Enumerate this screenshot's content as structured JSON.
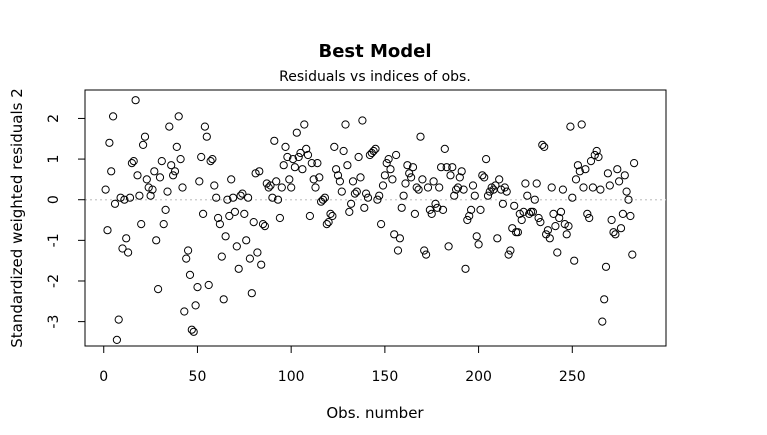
{
  "chart_data": {
    "type": "scatter",
    "title": "Best Model",
    "subtitle": "Residuals vs indices of obs.",
    "xlabel": "Obs. number",
    "ylabel": "Standardized weighted residuals 2",
    "xlim": [
      -10,
      300
    ],
    "ylim": [
      -3.6,
      2.7
    ],
    "xticks": [
      0,
      50,
      100,
      150,
      200,
      250
    ],
    "yticks": [
      -3,
      -2,
      -1,
      0,
      1,
      2
    ],
    "reference_line": 0,
    "grid": false,
    "marker": "open-circle",
    "colors": {
      "points": "#000000",
      "reference_line": "#c8c8c8"
    },
    "points": [
      [
        1,
        0.25
      ],
      [
        2,
        -0.75
      ],
      [
        3,
        1.4
      ],
      [
        4,
        0.7
      ],
      [
        5,
        2.05
      ],
      [
        6,
        -0.1
      ],
      [
        7,
        -3.45
      ],
      [
        8,
        -2.95
      ],
      [
        9,
        0.05
      ],
      [
        10,
        -1.2
      ],
      [
        11,
        0.0
      ],
      [
        12,
        -0.95
      ],
      [
        13,
        -1.3
      ],
      [
        14,
        0.05
      ],
      [
        15,
        0.9
      ],
      [
        16,
        0.95
      ],
      [
        17,
        2.45
      ],
      [
        18,
        0.6
      ],
      [
        19,
        0.1
      ],
      [
        20,
        -0.6
      ],
      [
        21,
        1.35
      ],
      [
        22,
        1.55
      ],
      [
        23,
        0.5
      ],
      [
        24,
        0.3
      ],
      [
        25,
        0.1
      ],
      [
        26,
        0.25
      ],
      [
        27,
        0.7
      ],
      [
        28,
        -1.0
      ],
      [
        29,
        -2.2
      ],
      [
        30,
        0.55
      ],
      [
        31,
        0.95
      ],
      [
        32,
        -0.6
      ],
      [
        33,
        -0.25
      ],
      [
        34,
        0.2
      ],
      [
        35,
        1.8
      ],
      [
        36,
        0.85
      ],
      [
        37,
        0.6
      ],
      [
        38,
        0.7
      ],
      [
        39,
        1.3
      ],
      [
        40,
        2.05
      ],
      [
        41,
        1.0
      ],
      [
        42,
        0.3
      ],
      [
        43,
        -2.75
      ],
      [
        44,
        -1.45
      ],
      [
        45,
        -1.25
      ],
      [
        46,
        -1.85
      ],
      [
        47,
        -3.2
      ],
      [
        48,
        -3.25
      ],
      [
        49,
        -2.6
      ],
      [
        50,
        -2.15
      ],
      [
        51,
        0.45
      ],
      [
        52,
        1.05
      ],
      [
        53,
        -0.35
      ],
      [
        54,
        1.8
      ],
      [
        55,
        1.55
      ],
      [
        56,
        -2.1
      ],
      [
        57,
        0.95
      ],
      [
        58,
        1.0
      ],
      [
        59,
        0.35
      ],
      [
        60,
        0.05
      ],
      [
        61,
        -0.45
      ],
      [
        62,
        -0.6
      ],
      [
        63,
        -1.4
      ],
      [
        64,
        -2.45
      ],
      [
        65,
        -0.9
      ],
      [
        66,
        0.0
      ],
      [
        67,
        -0.4
      ],
      [
        68,
        0.5
      ],
      [
        69,
        0.05
      ],
      [
        70,
        -0.3
      ],
      [
        71,
        -1.15
      ],
      [
        72,
        -1.7
      ],
      [
        73,
        0.1
      ],
      [
        74,
        0.15
      ],
      [
        75,
        -0.35
      ],
      [
        76,
        -1.0
      ],
      [
        77,
        0.05
      ],
      [
        78,
        -1.45
      ],
      [
        79,
        -2.3
      ],
      [
        80,
        -0.55
      ],
      [
        81,
        0.65
      ],
      [
        82,
        -1.3
      ],
      [
        83,
        0.7
      ],
      [
        84,
        -1.6
      ],
      [
        85,
        -0.6
      ],
      [
        86,
        -0.65
      ],
      [
        87,
        0.4
      ],
      [
        88,
        0.3
      ],
      [
        89,
        0.35
      ],
      [
        90,
        0.05
      ],
      [
        91,
        1.45
      ],
      [
        92,
        0.45
      ],
      [
        93,
        0.0
      ],
      [
        94,
        -0.45
      ],
      [
        95,
        0.3
      ],
      [
        96,
        0.85
      ],
      [
        97,
        1.3
      ],
      [
        98,
        1.05
      ],
      [
        99,
        0.5
      ],
      [
        100,
        0.3
      ],
      [
        101,
        1.0
      ],
      [
        102,
        0.8
      ],
      [
        103,
        1.65
      ],
      [
        104,
        1.05
      ],
      [
        105,
        1.15
      ],
      [
        106,
        0.75
      ],
      [
        107,
        1.85
      ],
      [
        108,
        1.25
      ],
      [
        109,
        1.1
      ],
      [
        110,
        -0.4
      ],
      [
        111,
        0.9
      ],
      [
        112,
        0.5
      ],
      [
        113,
        0.3
      ],
      [
        114,
        0.9
      ],
      [
        115,
        0.55
      ],
      [
        116,
        -0.05
      ],
      [
        117,
        0.0
      ],
      [
        118,
        0.05
      ],
      [
        119,
        -0.6
      ],
      [
        120,
        -0.55
      ],
      [
        121,
        -0.35
      ],
      [
        122,
        -0.4
      ],
      [
        123,
        1.3
      ],
      [
        124,
        0.75
      ],
      [
        125,
        0.6
      ],
      [
        126,
        0.45
      ],
      [
        127,
        0.2
      ],
      [
        128,
        1.2
      ],
      [
        129,
        1.85
      ],
      [
        130,
        0.85
      ],
      [
        131,
        -0.3
      ],
      [
        132,
        -0.1
      ],
      [
        133,
        0.45
      ],
      [
        134,
        0.15
      ],
      [
        135,
        0.2
      ],
      [
        136,
        1.05
      ],
      [
        137,
        0.55
      ],
      [
        138,
        1.95
      ],
      [
        139,
        -0.2
      ],
      [
        140,
        0.15
      ],
      [
        141,
        0.05
      ],
      [
        142,
        1.1
      ],
      [
        143,
        1.15
      ],
      [
        144,
        1.2
      ],
      [
        145,
        1.25
      ],
      [
        146,
        0.0
      ],
      [
        147,
        0.1
      ],
      [
        148,
        -0.6
      ],
      [
        149,
        0.35
      ],
      [
        150,
        0.6
      ],
      [
        151,
        0.9
      ],
      [
        152,
        1.0
      ],
      [
        153,
        0.75
      ],
      [
        154,
        0.5
      ],
      [
        155,
        -0.85
      ],
      [
        156,
        1.1
      ],
      [
        157,
        -1.25
      ],
      [
        158,
        -0.95
      ],
      [
        159,
        -0.2
      ],
      [
        160,
        0.1
      ],
      [
        161,
        0.4
      ],
      [
        162,
        0.85
      ],
      [
        163,
        0.65
      ],
      [
        164,
        0.55
      ],
      [
        165,
        0.8
      ],
      [
        166,
        -0.35
      ],
      [
        167,
        0.3
      ],
      [
        168,
        0.25
      ],
      [
        169,
        1.55
      ],
      [
        170,
        0.5
      ],
      [
        171,
        -1.25
      ],
      [
        172,
        -1.35
      ],
      [
        173,
        0.3
      ],
      [
        174,
        -0.25
      ],
      [
        175,
        -0.35
      ],
      [
        176,
        0.45
      ],
      [
        177,
        -0.1
      ],
      [
        178,
        -0.2
      ],
      [
        179,
        0.3
      ],
      [
        180,
        0.8
      ],
      [
        181,
        -0.25
      ],
      [
        182,
        1.25
      ],
      [
        183,
        0.8
      ],
      [
        184,
        -1.15
      ],
      [
        185,
        0.6
      ],
      [
        186,
        0.8
      ],
      [
        187,
        0.1
      ],
      [
        188,
        0.25
      ],
      [
        189,
        0.3
      ],
      [
        190,
        0.55
      ],
      [
        191,
        0.7
      ],
      [
        192,
        0.25
      ],
      [
        193,
        -1.7
      ],
      [
        194,
        -0.5
      ],
      [
        195,
        -0.4
      ],
      [
        196,
        -0.25
      ],
      [
        197,
        0.35
      ],
      [
        198,
        0.1
      ],
      [
        199,
        -0.9
      ],
      [
        200,
        -1.1
      ],
      [
        201,
        -0.25
      ],
      [
        202,
        0.6
      ],
      [
        203,
        0.55
      ],
      [
        204,
        1.0
      ],
      [
        205,
        0.1
      ],
      [
        206,
        0.2
      ],
      [
        207,
        0.3
      ],
      [
        208,
        0.25
      ],
      [
        209,
        0.35
      ],
      [
        210,
        -0.95
      ],
      [
        211,
        0.5
      ],
      [
        212,
        0.25
      ],
      [
        213,
        -0.1
      ],
      [
        214,
        0.3
      ],
      [
        215,
        0.2
      ],
      [
        216,
        -1.35
      ],
      [
        217,
        -1.25
      ],
      [
        218,
        -0.7
      ],
      [
        219,
        -0.15
      ],
      [
        220,
        -0.8
      ],
      [
        221,
        -0.8
      ],
      [
        222,
        -0.35
      ],
      [
        223,
        -0.5
      ],
      [
        224,
        -0.3
      ],
      [
        225,
        0.4
      ],
      [
        226,
        0.1
      ],
      [
        227,
        -0.35
      ],
      [
        228,
        -0.3
      ],
      [
        229,
        -0.3
      ],
      [
        230,
        0.0
      ],
      [
        231,
        0.4
      ],
      [
        232,
        -0.45
      ],
      [
        233,
        -0.55
      ],
      [
        234,
        1.35
      ],
      [
        235,
        1.3
      ],
      [
        236,
        -0.85
      ],
      [
        237,
        -0.75
      ],
      [
        238,
        -0.95
      ],
      [
        239,
        0.3
      ],
      [
        240,
        -0.35
      ],
      [
        241,
        -0.65
      ],
      [
        242,
        -1.3
      ],
      [
        243,
        -0.45
      ],
      [
        244,
        -0.3
      ],
      [
        245,
        0.25
      ],
      [
        246,
        -0.6
      ],
      [
        247,
        -0.85
      ],
      [
        248,
        -0.65
      ],
      [
        249,
        1.8
      ],
      [
        250,
        0.05
      ],
      [
        251,
        -1.5
      ],
      [
        252,
        0.5
      ],
      [
        253,
        0.85
      ],
      [
        254,
        0.7
      ],
      [
        255,
        1.85
      ],
      [
        256,
        0.3
      ],
      [
        257,
        0.75
      ],
      [
        258,
        -0.35
      ],
      [
        259,
        -0.45
      ],
      [
        260,
        0.95
      ],
      [
        261,
        0.3
      ],
      [
        262,
        1.1
      ],
      [
        263,
        1.2
      ],
      [
        264,
        1.05
      ],
      [
        265,
        0.25
      ],
      [
        266,
        -3.0
      ],
      [
        267,
        -2.45
      ],
      [
        268,
        -1.65
      ],
      [
        269,
        0.65
      ],
      [
        270,
        0.35
      ],
      [
        271,
        -0.5
      ],
      [
        272,
        -0.8
      ],
      [
        273,
        -0.85
      ],
      [
        274,
        0.75
      ],
      [
        275,
        0.45
      ],
      [
        276,
        -0.7
      ],
      [
        277,
        -0.35
      ],
      [
        278,
        0.6
      ],
      [
        279,
        0.2
      ],
      [
        280,
        0.0
      ],
      [
        281,
        -0.4
      ],
      [
        282,
        -1.35
      ],
      [
        283,
        0.9
      ]
    ]
  }
}
